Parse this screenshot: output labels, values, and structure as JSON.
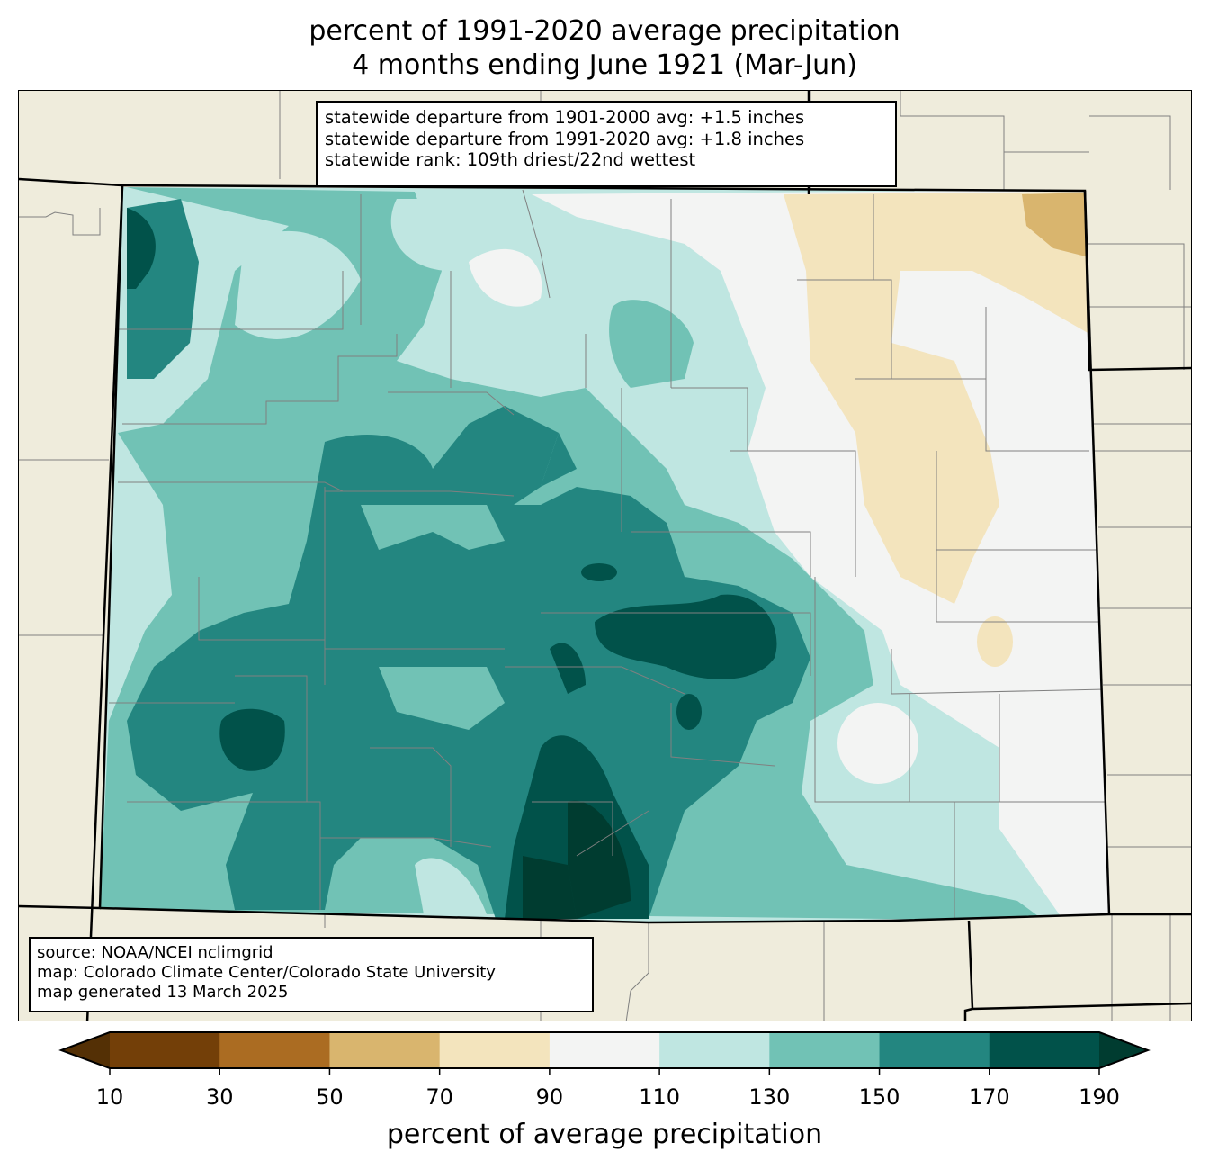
{
  "title": {
    "line1": "percent of 1991-2020 average precipitation",
    "line2": "4 months ending June 1921 (Mar-Jun)"
  },
  "stats_box": {
    "line1": "statewide departure from 1901-2000 avg: +1.5 inches",
    "line2": "statewide departure from 1991-2020 avg: +1.8 inches",
    "line3": "statewide rank: 109th driest/22nd wettest"
  },
  "source_box": {
    "line1": "source: NOAA/NCEI nclimgrid",
    "line2": "map: Colorado Climate Center/Colorado State University",
    "line3": "map generated 13 March 2025"
  },
  "colorbar": {
    "label": "percent of average precipitation",
    "ticks": [
      "10",
      "30",
      "50",
      "70",
      "90",
      "110",
      "130",
      "150",
      "170",
      "190"
    ],
    "under_color": "#543005",
    "over_color": "#003c30",
    "bins": [
      {
        "range": "10-30",
        "color": "#733f08"
      },
      {
        "range": "30-50",
        "color": "#ab6c22"
      },
      {
        "range": "50-70",
        "color": "#d9b56e"
      },
      {
        "range": "70-90",
        "color": "#f3e4bd"
      },
      {
        "range": "90-110",
        "color": "#f3f4f3"
      },
      {
        "range": "110-130",
        "color": "#bfe6e1"
      },
      {
        "range": "130-150",
        "color": "#71c2b5"
      },
      {
        "range": "150-170",
        "color": "#238680"
      },
      {
        "range": "170-190",
        "color": "#01524a"
      }
    ]
  },
  "colors": {
    "land": "#efecdc",
    "county_lines": "#808080"
  }
}
